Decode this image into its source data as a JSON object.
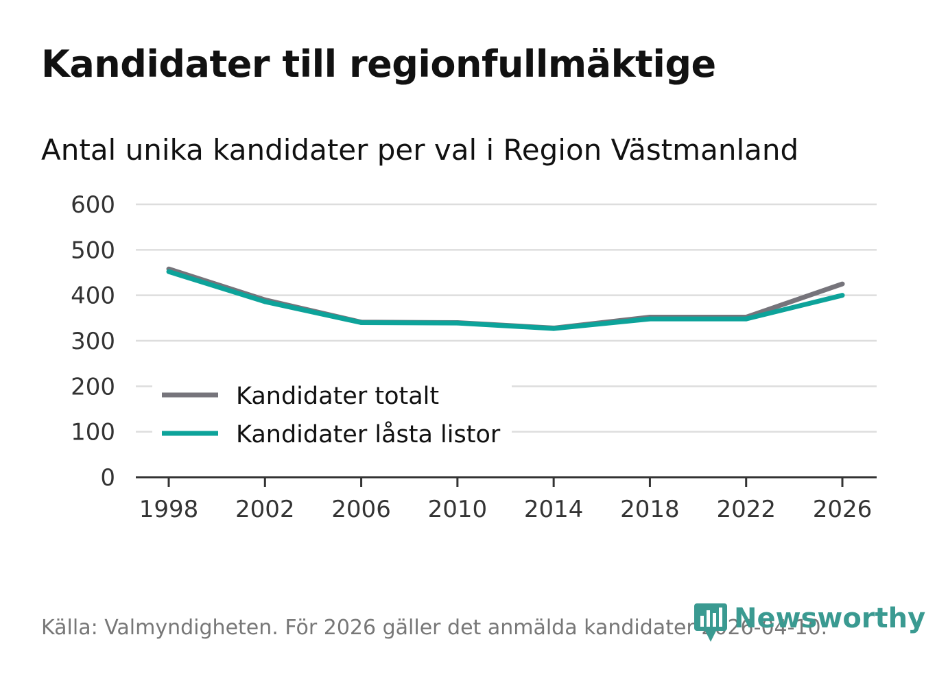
{
  "title": "Kandidater till regionfullmäktige",
  "subtitle": "Antal unika kandidater per val i Region Västmanland",
  "source": "Källa: Valmyndigheten. För 2026 gäller det anmälda kandidater 2026-04-10.",
  "brand": "Newsworthy",
  "colors": {
    "series_total": "#76747b",
    "series_locked": "#0da39a",
    "grid": "#dddddd",
    "axis": "#333333",
    "brand": "#3a9a91"
  },
  "chart_data": {
    "type": "line",
    "title": "Kandidater till regionfullmäktige",
    "xlabel": "",
    "ylabel": "",
    "x": [
      "1998",
      "2002",
      "2006",
      "2010",
      "2014",
      "2018",
      "2022",
      "2026"
    ],
    "y_ticks": [
      "0",
      "100",
      "200",
      "300",
      "400",
      "500",
      "600"
    ],
    "ylim": [
      0,
      600
    ],
    "grid": true,
    "legend_position": "bottom-left",
    "series": [
      {
        "name": "Kandidater totalt",
        "color": "#76747b",
        "values": [
          458,
          390,
          341,
          340,
          328,
          352,
          352,
          425
        ]
      },
      {
        "name": "Kandidater låsta listor",
        "color": "#0da39a",
        "values": [
          452,
          386,
          340,
          339,
          327,
          348,
          348,
          400
        ]
      }
    ]
  }
}
